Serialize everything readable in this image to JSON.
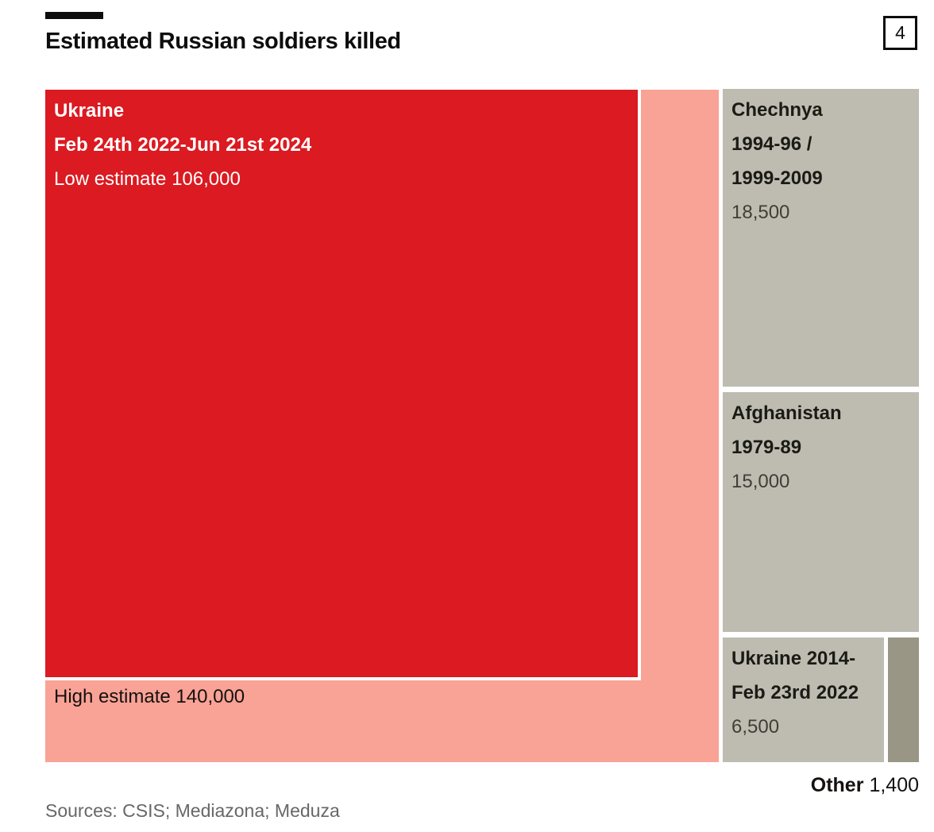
{
  "header": {
    "title": "Estimated Russian soldiers killed",
    "figure_number": "4"
  },
  "chart": {
    "ukraine_war": {
      "name": "Ukraine",
      "period": "Feb 24th 2022-Jun 21st 2024",
      "low_label": "Low estimate 106,000",
      "high_label": "High estimate 140,000"
    },
    "chechnya": {
      "name": "Chechnya",
      "period_line1": "1994-96 /",
      "period_line2": "1999-2009",
      "value": "18,500"
    },
    "afghanistan": {
      "name": "Afghanistan",
      "period": "1979-89",
      "value": "15,000"
    },
    "ukraine_2014": {
      "name_line1": "Ukraine 2014-",
      "name_line2": "Feb 23rd 2022",
      "value": "6,500"
    },
    "other": {
      "name": "Other",
      "value": "1,400"
    }
  },
  "footer": {
    "sources": "Sources: CSIS; Mediazona; Meduza"
  },
  "colors": {
    "low_estimate_red": "#DB1A21",
    "high_estimate_pink": "#F9A296",
    "historic_block_gray": "#BEBBB1",
    "other_block_gray": "#999686",
    "text_dark": "#1B1B16",
    "value_text": "#3F3E37",
    "source_text": "#676767"
  },
  "chart_data": {
    "type": "treemap",
    "title": "Estimated Russian soldiers killed",
    "unit": "soldiers killed",
    "items": [
      {
        "label": "Ukraine",
        "period": "Feb 24th 2022-Jun 21st 2024",
        "low_estimate": 106000,
        "high_estimate": 140000
      },
      {
        "label": "Chechnya",
        "period": "1994-96 / 1999-2009",
        "value": 18500
      },
      {
        "label": "Afghanistan",
        "period": "1979-89",
        "value": 15000
      },
      {
        "label": "Ukraine",
        "period": "2014-Feb 23rd 2022",
        "value": 6500
      },
      {
        "label": "Other",
        "value": 1400
      }
    ],
    "layout": "area-proportional nested squares, low estimate nested inside high estimate, smaller conflicts in right column",
    "sources": "Sources: CSIS; Mediazona; Meduza",
    "figure_number": 4
  }
}
